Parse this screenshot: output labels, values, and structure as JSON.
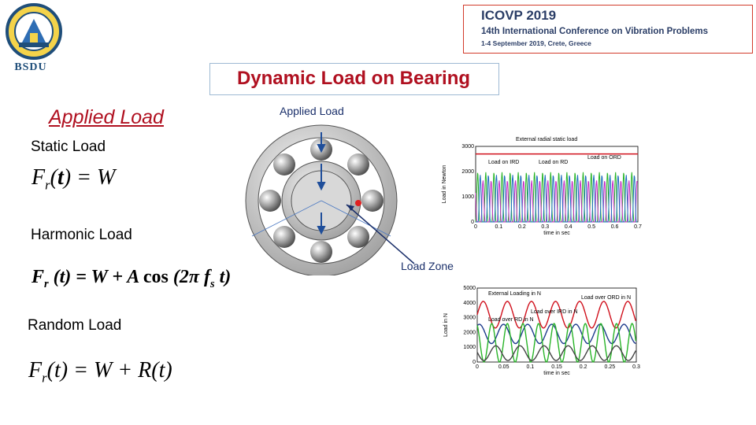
{
  "logo": {
    "text": "BSDU",
    "icon": "university-crest-icon"
  },
  "conference": {
    "title": "ICOVP 2019",
    "subtitle": "14th International Conference on Vibration Problems",
    "date_place": "1-4 September 2019, Crete, Greece",
    "border_color": "#d23b2b"
  },
  "slide": {
    "title": "Dynamic Load on Bearing",
    "applied_heading": "Applied Load",
    "static_label": "Static Load",
    "harmonic_label": "Harmonic  Load",
    "random_label": "Random Load",
    "title_color": "#b01020"
  },
  "figure": {
    "applied_load_label": "Applied Load",
    "load_zone_label": "Load Zone"
  },
  "chart_data": [
    {
      "type": "line",
      "title": "External radial static load",
      "xlabel": "time in sec",
      "ylabel": "Load in Newton",
      "x_ticks": [
        "0",
        "0.1",
        "0.2",
        "0.3",
        "0.4",
        "0.5",
        "0.6",
        "0.7"
      ],
      "y_ticks": [
        "0",
        "1000",
        "2000",
        "3000"
      ],
      "xlim": [
        0,
        0.7
      ],
      "ylim": [
        0,
        3000
      ],
      "annotations": [
        "Load on IRD",
        "Load on RD",
        "Load on ORD"
      ],
      "series": [
        {
          "name": "External radial static load",
          "color": "#d0101c",
          "x": [
            0,
            0.7
          ],
          "values": [
            2700,
            2700
          ]
        },
        {
          "name": "Load on IRD",
          "color": "#28b428",
          "x": [
            0,
            0.7
          ],
          "values": [
            1800,
            1800
          ]
        },
        {
          "name": "Load on RD",
          "color": "#c42bc4",
          "x": [
            0,
            0.7
          ],
          "values": [
            1500,
            1500
          ]
        },
        {
          "name": "Load on ORD",
          "color": "#1e6fbf",
          "x": [
            0,
            0.7
          ],
          "values": [
            1700,
            1700
          ]
        }
      ]
    },
    {
      "type": "line",
      "xlabel": "time in sec",
      "ylabel": "Load in N",
      "x_ticks": [
        "0",
        "0.05",
        "0.1",
        "0.15",
        "0.2",
        "0.25",
        "0.3"
      ],
      "y_ticks": [
        "0",
        "1000",
        "2000",
        "3000",
        "4000",
        "5000"
      ],
      "xlim": [
        0,
        0.3
      ],
      "ylim": [
        0,
        5000
      ],
      "annotations": [
        "External Loading in N",
        "Load over ORD in N",
        "Load over IRD in N",
        "Load over RD in N"
      ],
      "series": [
        {
          "name": "External Loading in N",
          "color": "#d0101c",
          "mean": 3200,
          "amp": 900
        },
        {
          "name": "Load over ORD in N",
          "color": "#1e3c8c",
          "mean": 1900,
          "amp": 650
        },
        {
          "name": "Load over IRD in N",
          "color": "#28b428",
          "mean": 1300,
          "amp": 1300
        },
        {
          "name": "Load over RD in N",
          "color": "#444444",
          "mean": 600,
          "amp": 500
        }
      ]
    }
  ]
}
